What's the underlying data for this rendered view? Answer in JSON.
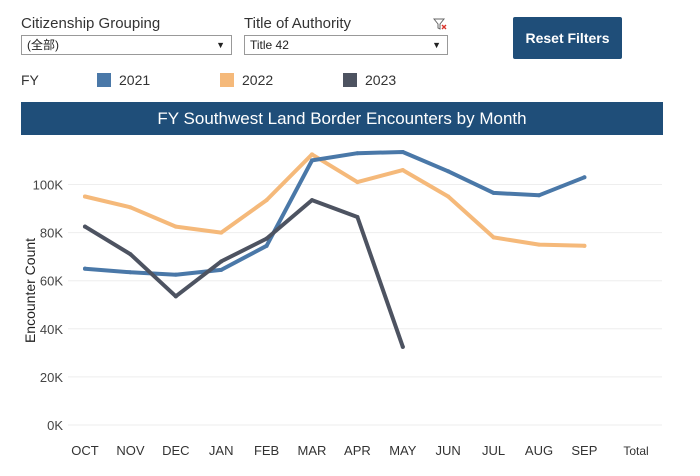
{
  "filters": {
    "citizenship": {
      "label": "Citizenship Grouping",
      "value": "(全部)"
    },
    "authority": {
      "label": "Title of Authority",
      "value": "Title 42"
    },
    "reset_label": "Reset Filters"
  },
  "legend": {
    "fy_label": "FY"
  },
  "colors": {
    "2021": "#4a78a8",
    "2022": "#f5b97a",
    "2023": "#4d5361",
    "title_bg": "#1f4e79"
  },
  "chart_data": {
    "type": "line",
    "title": "FY Southwest Land Border Encounters by Month",
    "xlabel": "",
    "ylabel": "Encounter Count",
    "categories": [
      "OCT",
      "NOV",
      "DEC",
      "JAN",
      "FEB",
      "MAR",
      "APR",
      "MAY",
      "JUN",
      "JUL",
      "AUG",
      "SEP"
    ],
    "extra_category": "Total",
    "yticks": [
      0,
      20000,
      40000,
      60000,
      80000,
      100000
    ],
    "ytick_labels": [
      "0K",
      "20K",
      "40K",
      "60K",
      "80K",
      "100K"
    ],
    "ylim": [
      0,
      116000
    ],
    "series": [
      {
        "name": "2021",
        "values": [
          65000,
          63500,
          62500,
          64500,
          74500,
          110000,
          113000,
          113500,
          105500,
          96500,
          95500,
          103000
        ]
      },
      {
        "name": "2022",
        "values": [
          95000,
          90500,
          82500,
          80000,
          93500,
          112500,
          101000,
          106000,
          95000,
          78000,
          75000,
          74500
        ]
      },
      {
        "name": "2023",
        "values": [
          82500,
          71000,
          53500,
          68000,
          77500,
          93500,
          86500,
          32500,
          null,
          null,
          null,
          null
        ]
      }
    ]
  }
}
